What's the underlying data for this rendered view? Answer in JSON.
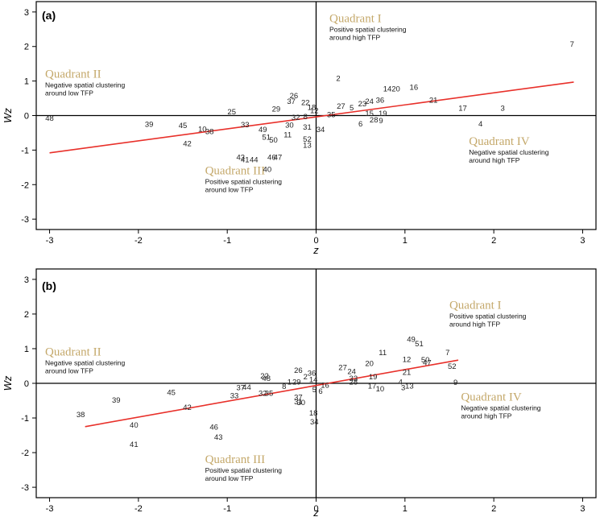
{
  "colors": {
    "frame": "#000000",
    "fit_line": "#e8302a",
    "quadrant_title": "#c4a86a",
    "text": "#222222"
  },
  "chart_data": [
    {
      "type": "scatter",
      "panel_label": "(a)",
      "xlabel": "z",
      "ylabel": "Wz",
      "xlim": [
        -3.15,
        3.15
      ],
      "ylim": [
        -3.3,
        3.3
      ],
      "x_ticks": [
        "-3",
        "-2",
        "-1",
        "0",
        "1",
        "2",
        "3"
      ],
      "y_ticks": [
        "-3",
        "-2",
        "-1",
        "0",
        "1",
        "2",
        "3"
      ],
      "fit_line": {
        "x": [
          -3.0,
          2.9
        ],
        "y": [
          -1.08,
          0.97
        ]
      },
      "quadrants": [
        {
          "id": "q1",
          "title": "Quadrant I",
          "line1": "Positive spatial clustering",
          "line2": "around high TFP",
          "x": 0.15,
          "y": 2.7
        },
        {
          "id": "q2",
          "title": "Quadrant II",
          "line1": "Negative spatial clustering",
          "line2": "around low TFP",
          "x": -3.05,
          "y": 1.1
        },
        {
          "id": "q3",
          "title": "Quadrant III",
          "line1": "Positive spatial clustering",
          "line2": "around low TFP",
          "x": -1.25,
          "y": -1.7
        },
        {
          "id": "q4",
          "title": "Quadrant IV",
          "line1": "Negative spatial clustering",
          "line2": "around high TFP",
          "x": 1.72,
          "y": -0.85
        }
      ],
      "points": [
        {
          "label": "7",
          "x": 2.88,
          "y": 2.08
        },
        {
          "label": "2",
          "x": 0.25,
          "y": 1.08
        },
        {
          "label": "1420",
          "x": 0.85,
          "y": 0.78
        },
        {
          "label": "16",
          "x": 1.1,
          "y": 0.83
        },
        {
          "label": "21",
          "x": 1.32,
          "y": 0.46
        },
        {
          "label": "17",
          "x": 1.65,
          "y": 0.22
        },
        {
          "label": "3",
          "x": 2.1,
          "y": 0.22
        },
        {
          "label": "4",
          "x": 1.85,
          "y": -0.23
        },
        {
          "label": "36",
          "x": 0.72,
          "y": 0.46
        },
        {
          "label": "24",
          "x": 0.6,
          "y": 0.42
        },
        {
          "label": "23",
          "x": 0.52,
          "y": 0.35
        },
        {
          "label": "27",
          "x": 0.28,
          "y": 0.28
        },
        {
          "label": "5",
          "x": 0.4,
          "y": 0.23
        },
        {
          "label": "15",
          "x": 0.6,
          "y": 0.07
        },
        {
          "label": "19",
          "x": 0.75,
          "y": 0.07
        },
        {
          "label": "28",
          "x": 0.65,
          "y": -0.12
        },
        {
          "label": "9",
          "x": 0.73,
          "y": -0.14
        },
        {
          "label": "6",
          "x": 0.5,
          "y": -0.23
        },
        {
          "label": "35",
          "x": 0.17,
          "y": 0.03
        },
        {
          "label": "18",
          "x": -0.05,
          "y": 0.25
        },
        {
          "label": "22",
          "x": -0.12,
          "y": 0.38
        },
        {
          "label": "12",
          "x": -0.02,
          "y": 0.15
        },
        {
          "label": "26",
          "x": -0.25,
          "y": 0.58
        },
        {
          "label": "37",
          "x": -0.28,
          "y": 0.42
        },
        {
          "label": "29",
          "x": -0.45,
          "y": 0.2
        },
        {
          "label": "25",
          "x": -0.95,
          "y": 0.12
        },
        {
          "label": "32",
          "x": -0.23,
          "y": -0.05
        },
        {
          "label": "8",
          "x": -0.12,
          "y": -0.02
        },
        {
          "label": "30",
          "x": -0.3,
          "y": -0.27
        },
        {
          "label": "31",
          "x": -0.1,
          "y": -0.33
        },
        {
          "label": "34",
          "x": 0.05,
          "y": -0.4
        },
        {
          "label": "52",
          "x": -0.1,
          "y": -0.68
        },
        {
          "label": "13",
          "x": -0.1,
          "y": -0.85
        },
        {
          "label": "49",
          "x": -0.6,
          "y": -0.4
        },
        {
          "label": "51",
          "x": -0.56,
          "y": -0.62
        },
        {
          "label": "50",
          "x": -0.48,
          "y": -0.7
        },
        {
          "label": "11",
          "x": -0.32,
          "y": -0.55
        },
        {
          "label": "33",
          "x": -0.8,
          "y": -0.26
        },
        {
          "label": "10",
          "x": -1.28,
          "y": -0.38
        },
        {
          "label": "38",
          "x": -1.2,
          "y": -0.45
        },
        {
          "label": "42",
          "x": -1.45,
          "y": -0.8
        },
        {
          "label": "45",
          "x": -1.5,
          "y": -0.28
        },
        {
          "label": "39",
          "x": -1.88,
          "y": -0.25
        },
        {
          "label": "48",
          "x": -3.0,
          "y": -0.07
        },
        {
          "label": "43",
          "x": -0.85,
          "y": -1.2
        },
        {
          "label": "41",
          "x": -0.8,
          "y": -1.27
        },
        {
          "label": "44",
          "x": -0.7,
          "y": -1.27
        },
        {
          "label": "47",
          "x": -0.43,
          "y": -1.2
        },
        {
          "label": "46",
          "x": -0.5,
          "y": -1.2
        },
        {
          "label": "40",
          "x": -0.55,
          "y": -1.55
        }
      ]
    },
    {
      "type": "scatter",
      "panel_label": "(b)",
      "xlabel": "z",
      "ylabel": "Wz",
      "xlim": [
        -3.15,
        3.15
      ],
      "ylim": [
        -3.3,
        3.3
      ],
      "x_ticks": [
        "-3",
        "-2",
        "-1",
        "0",
        "1",
        "2",
        "3"
      ],
      "y_ticks": [
        "-3",
        "-2",
        "-1",
        "0",
        "1",
        "2",
        "3"
      ],
      "fit_line": {
        "x": [
          -2.6,
          1.6
        ],
        "y": [
          -1.25,
          0.67
        ]
      },
      "quadrants": [
        {
          "id": "q1",
          "title": "Quadrant I",
          "line1": "Positive spatial clustering",
          "line2": "around high TFP",
          "x": 1.5,
          "y": 2.15
        },
        {
          "id": "q2",
          "title": "Quadrant II",
          "line1": "Negative spatial clustering",
          "line2": "around low TFP",
          "x": -3.05,
          "y": 0.8
        },
        {
          "id": "q3",
          "title": "Quadrant III",
          "line1": "Positive spatial clustering",
          "line2": "around low TFP",
          "x": -1.25,
          "y": -2.3
        },
        {
          "id": "q4",
          "title": "Quadrant IV",
          "line1": "Negative spatial clustering",
          "line2": "around high TFP",
          "x": 1.63,
          "y": -0.5
        }
      ],
      "points": [
        {
          "label": "49",
          "x": 1.07,
          "y": 1.28
        },
        {
          "label": "51",
          "x": 1.16,
          "y": 1.15
        },
        {
          "label": "7",
          "x": 1.48,
          "y": 0.9
        },
        {
          "label": "11",
          "x": 0.75,
          "y": 0.9
        },
        {
          "label": "12",
          "x": 1.02,
          "y": 0.7
        },
        {
          "label": "50",
          "x": 1.23,
          "y": 0.68
        },
        {
          "label": "47",
          "x": 1.25,
          "y": 0.6
        },
        {
          "label": "52",
          "x": 1.53,
          "y": 0.5
        },
        {
          "label": "20",
          "x": 0.6,
          "y": 0.58
        },
        {
          "label": "27",
          "x": 0.3,
          "y": 0.46
        },
        {
          "label": "24",
          "x": 0.4,
          "y": 0.35
        },
        {
          "label": "21",
          "x": 1.02,
          "y": 0.32
        },
        {
          "label": "19",
          "x": 0.64,
          "y": 0.2
        },
        {
          "label": "33",
          "x": 0.42,
          "y": 0.15
        },
        {
          "label": "28",
          "x": 0.42,
          "y": 0.05
        },
        {
          "label": "4",
          "x": 0.95,
          "y": 0.05
        },
        {
          "label": "13",
          "x": 1.05,
          "y": -0.07
        },
        {
          "label": "3",
          "x": 0.98,
          "y": -0.12
        },
        {
          "label": "9",
          "x": 1.57,
          "y": 0.03
        },
        {
          "label": "17",
          "x": 0.63,
          "y": -0.07
        },
        {
          "label": "10",
          "x": 0.72,
          "y": -0.15
        },
        {
          "label": "16",
          "x": 0.1,
          "y": -0.05
        },
        {
          "label": "6",
          "x": 0.05,
          "y": -0.22
        },
        {
          "label": "26",
          "x": -0.2,
          "y": 0.38
        },
        {
          "label": "36",
          "x": -0.05,
          "y": 0.3
        },
        {
          "label": "2",
          "x": -0.12,
          "y": 0.2
        },
        {
          "label": "14",
          "x": -0.03,
          "y": 0.12
        },
        {
          "label": "29",
          "x": -0.22,
          "y": 0.05
        },
        {
          "label": "1",
          "x": -0.3,
          "y": 0.05
        },
        {
          "label": "22",
          "x": -0.58,
          "y": 0.22
        },
        {
          "label": "48",
          "x": -0.56,
          "y": 0.15
        },
        {
          "label": "8",
          "x": -0.36,
          "y": -0.08
        },
        {
          "label": "5",
          "x": -0.02,
          "y": -0.18
        },
        {
          "label": "35",
          "x": -0.53,
          "y": -0.28
        },
        {
          "label": "32",
          "x": -0.6,
          "y": -0.28
        },
        {
          "label": "37",
          "x": -0.2,
          "y": -0.4
        },
        {
          "label": "31",
          "x": -0.2,
          "y": -0.52
        },
        {
          "label": "30",
          "x": -0.17,
          "y": -0.55
        },
        {
          "label": "18",
          "x": -0.03,
          "y": -0.85
        },
        {
          "label": "34",
          "x": -0.02,
          "y": -1.1
        },
        {
          "label": "37",
          "x": -0.85,
          "y": -0.12
        },
        {
          "label": "44",
          "x": -0.78,
          "y": -0.1
        },
        {
          "label": "33",
          "x": -0.92,
          "y": -0.35
        },
        {
          "label": "45",
          "x": -1.63,
          "y": -0.25
        },
        {
          "label": "42",
          "x": -1.45,
          "y": -0.68
        },
        {
          "label": "39",
          "x": -2.25,
          "y": -0.48
        },
        {
          "label": "38",
          "x": -2.65,
          "y": -0.9
        },
        {
          "label": "40",
          "x": -2.05,
          "y": -1.2
        },
        {
          "label": "46",
          "x": -1.15,
          "y": -1.25
        },
        {
          "label": "43",
          "x": -1.1,
          "y": -1.55
        },
        {
          "label": "41",
          "x": -2.05,
          "y": -1.75
        }
      ]
    }
  ]
}
